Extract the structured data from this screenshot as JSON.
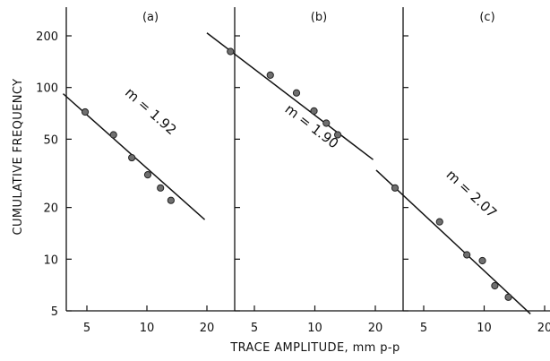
{
  "figure": {
    "ylabel": "CUMULATIVE FREQUENCY",
    "xlabel": "TRACE AMPLITUDE, mm p-p"
  },
  "chart_data": [
    {
      "type": "scatter",
      "panel_label": "(a)",
      "slope_label": "m = 1.92",
      "yscale": "log",
      "xscale": "log",
      "ylim": [
        5,
        300
      ],
      "xlim": [
        3.8,
        22
      ],
      "yticks": [
        5,
        10,
        20,
        50,
        100,
        200
      ],
      "xticks": [
        5,
        10,
        20
      ],
      "points": [
        {
          "x": 4.9,
          "y": 72
        },
        {
          "x": 6.8,
          "y": 53
        },
        {
          "x": 8.4,
          "y": 39
        },
        {
          "x": 10.1,
          "y": 31
        },
        {
          "x": 11.7,
          "y": 26
        },
        {
          "x": 13.2,
          "y": 22
        }
      ],
      "fit_line": [
        {
          "x": 3.8,
          "y": 92
        },
        {
          "x": 19.5,
          "y": 17
        }
      ]
    },
    {
      "type": "scatter",
      "panel_label": "(b)",
      "slope_label": "m = 1.90",
      "yscale": "log",
      "xscale": "log",
      "ylim": [
        5,
        300
      ],
      "xlim": [
        3.8,
        22
      ],
      "yticks": [
        5,
        10,
        20,
        50,
        100,
        200
      ],
      "xticks": [
        5,
        10,
        20
      ],
      "points": [
        {
          "x": 3.8,
          "y": 162
        },
        {
          "x": 6.0,
          "y": 118
        },
        {
          "x": 8.1,
          "y": 93
        },
        {
          "x": 9.9,
          "y": 73
        },
        {
          "x": 11.4,
          "y": 62
        },
        {
          "x": 13.0,
          "y": 53
        }
      ],
      "fit_line": [
        {
          "x": 2.9,
          "y": 208
        },
        {
          "x": 19.5,
          "y": 38
        }
      ]
    },
    {
      "type": "scatter",
      "panel_label": "(c)",
      "slope_label": "m = 2.07",
      "yscale": "log",
      "xscale": "log",
      "ylim": [
        5,
        300
      ],
      "xlim": [
        2.9,
        22
      ],
      "yticks": [
        5,
        10,
        20,
        50,
        100,
        200
      ],
      "xticks": [
        5,
        10,
        20
      ],
      "points": [
        {
          "x": 3.6,
          "y": 26
        },
        {
          "x": 6.0,
          "y": 16.5
        },
        {
          "x": 8.2,
          "y": 10.6
        },
        {
          "x": 9.8,
          "y": 9.8
        },
        {
          "x": 11.3,
          "y": 7.0
        },
        {
          "x": 13.2,
          "y": 6.0
        }
      ],
      "fit_line": [
        {
          "x": 2.9,
          "y": 33
        },
        {
          "x": 17,
          "y": 4.8
        }
      ]
    }
  ]
}
